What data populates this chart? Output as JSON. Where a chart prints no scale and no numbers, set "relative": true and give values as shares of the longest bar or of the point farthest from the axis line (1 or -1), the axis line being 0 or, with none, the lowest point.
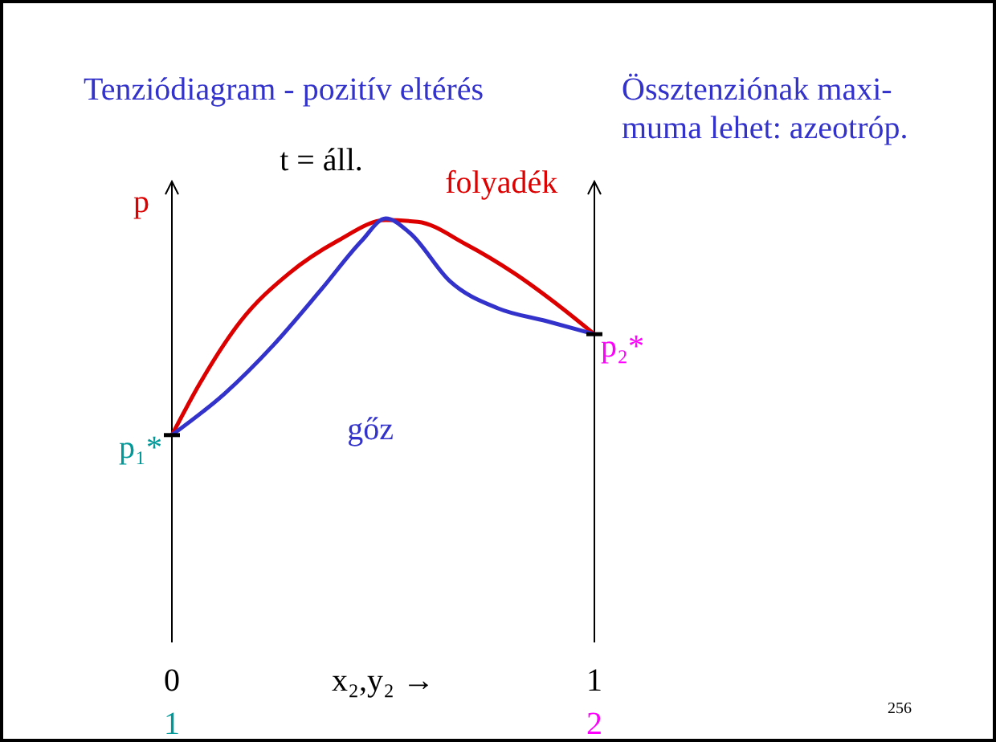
{
  "chart_data": {
    "type": "line",
    "relative": true,
    "title": "Tenziódiagram - pozitív eltérés",
    "ylabel": "p",
    "xlabel": "x₂,y₂ →",
    "xlim": [
      0,
      1
    ],
    "xticks": [
      0,
      1
    ],
    "marker": "none",
    "line_style": "solid",
    "series": [
      {
        "name": "folyadék",
        "color": "#dd0000",
        "x": [
          0,
          0.068,
          0.163,
          0.278,
          0.392,
          0.506,
          0.582,
          0.696,
          0.81,
          0.924,
          1
        ],
        "values": [
          0.489,
          0.614,
          0.758,
          0.871,
          0.947,
          0.996,
          0.992,
          0.939,
          0.871,
          0.788,
          0.727
        ]
      },
      {
        "name": "gőz",
        "color": "#3333cc",
        "x": [
          0,
          0.125,
          0.24,
          0.354,
          0.449,
          0.506,
          0.563,
          0.658,
          0.772,
          0.886,
          1
        ],
        "values": [
          0.489,
          0.587,
          0.701,
          0.833,
          0.947,
          1,
          0.966,
          0.852,
          0.788,
          0.758,
          0.727
        ]
      }
    ],
    "annotations": [
      "Össztenziónak maxi-\nmuma lehet: azeotróp.",
      "t = áll.",
      {
        "text": "p₁*",
        "x": 0,
        "y": 0.489
      },
      {
        "text": "p₂*",
        "x": 1,
        "y": 0.727
      },
      "1",
      "2",
      "256"
    ]
  }
}
